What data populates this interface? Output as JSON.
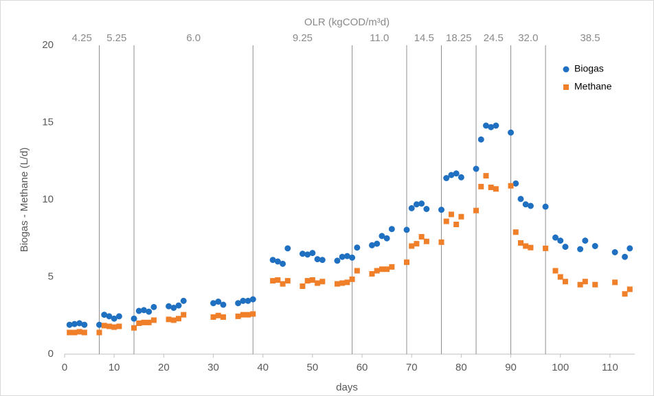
{
  "chart_data": {
    "type": "scatter",
    "title": "OLR  (kgCOD/m³d)",
    "x_label": "days",
    "y_label": "Biogas - Methane  (L/d)",
    "xlim": [
      0,
      115
    ],
    "ylim": [
      0,
      20
    ],
    "xticks": [
      0,
      10,
      20,
      30,
      40,
      50,
      60,
      70,
      80,
      90,
      100,
      110
    ],
    "yticks": [
      0,
      5,
      10,
      15,
      20
    ],
    "grid": false,
    "legend": "upper right",
    "phase_boundaries": [
      7,
      14,
      38,
      58,
      69,
      76,
      83,
      90,
      97
    ],
    "phase_labels": [
      "4.25",
      "5.25",
      "6.0",
      "9.25",
      "11.0",
      "14.5",
      "18.25",
      "24.5",
      "32.0",
      "38.5"
    ],
    "x": [
      1,
      2,
      3,
      4,
      7,
      8,
      9,
      10,
      11,
      14,
      15,
      16,
      17,
      18,
      21,
      22,
      23,
      24,
      30,
      31,
      32,
      35,
      36,
      37,
      38,
      42,
      43,
      44,
      45,
      48,
      49,
      50,
      51,
      52,
      55,
      56,
      57,
      58,
      59,
      62,
      63,
      64,
      65,
      66,
      69,
      70,
      71,
      72,
      73,
      76,
      77,
      78,
      79,
      80,
      83,
      84,
      85,
      86,
      87,
      90,
      91,
      92,
      93,
      94,
      97,
      99,
      100,
      101,
      104,
      105,
      107,
      111,
      113,
      114
    ],
    "series": [
      {
        "name": "Biogas",
        "color": "#1f70c1",
        "marker": "circle",
        "values": [
          1.9,
          1.95,
          2.0,
          1.9,
          1.9,
          2.55,
          2.45,
          2.3,
          2.45,
          2.3,
          2.8,
          2.85,
          2.75,
          3.05,
          3.1,
          3.0,
          3.15,
          3.45,
          3.3,
          3.4,
          3.2,
          3.3,
          3.45,
          3.45,
          3.55,
          6.1,
          6.0,
          5.85,
          6.85,
          6.5,
          6.45,
          6.55,
          6.15,
          6.1,
          6.05,
          6.3,
          6.35,
          6.25,
          6.9,
          7.05,
          7.15,
          7.65,
          7.5,
          8.1,
          8.05,
          9.45,
          9.7,
          9.75,
          9.4,
          9.35,
          11.4,
          11.6,
          11.7,
          11.45,
          12.0,
          13.9,
          14.8,
          14.7,
          14.8,
          14.35,
          11.05,
          10.05,
          9.7,
          9.6,
          9.55,
          7.55,
          7.35,
          6.95,
          6.8,
          7.35,
          7.0,
          6.6,
          6.3,
          6.85
        ]
      },
      {
        "name": "Methane",
        "color": "#f07f2a",
        "marker": "square",
        "values": [
          1.4,
          1.4,
          1.45,
          1.4,
          1.4,
          1.85,
          1.8,
          1.75,
          1.8,
          1.7,
          2.0,
          2.05,
          2.05,
          2.2,
          2.25,
          2.2,
          2.3,
          2.55,
          2.4,
          2.5,
          2.4,
          2.45,
          2.55,
          2.55,
          2.6,
          4.75,
          4.8,
          4.55,
          4.75,
          4.4,
          4.75,
          4.8,
          4.6,
          4.7,
          4.55,
          4.6,
          4.65,
          4.85,
          5.4,
          5.2,
          5.4,
          5.5,
          5.5,
          5.65,
          5.95,
          7.0,
          7.15,
          7.6,
          7.3,
          7.25,
          8.6,
          9.05,
          8.4,
          8.9,
          9.3,
          10.85,
          11.55,
          10.8,
          10.7,
          10.9,
          7.9,
          7.2,
          7.0,
          6.9,
          6.85,
          5.4,
          5.0,
          4.7,
          4.5,
          4.7,
          4.5,
          4.65,
          3.9,
          4.2
        ]
      }
    ]
  }
}
